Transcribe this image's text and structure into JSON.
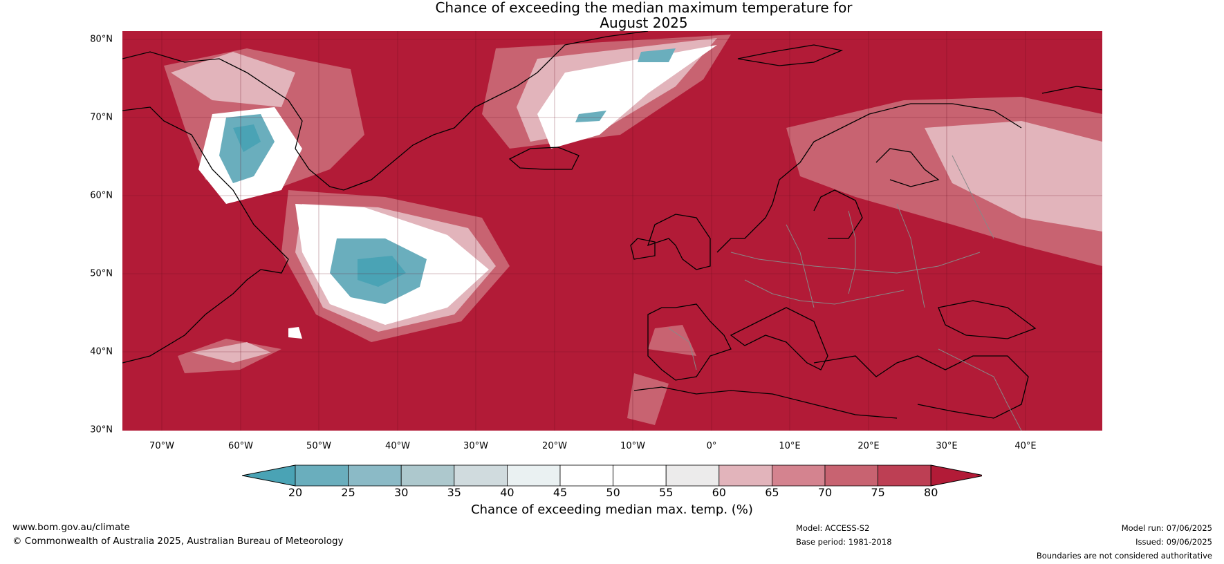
{
  "title": {
    "line1": "Chance of exceeding the median maximum temperature for",
    "line2": "August 2025"
  },
  "map": {
    "region": "North Atlantic and Europe",
    "background_color": "#b21b37",
    "lat_labels": [
      "80°N",
      "70°N",
      "60°N",
      "50°N",
      "40°N",
      "30°N"
    ],
    "lon_labels": [
      "70°W",
      "60°W",
      "50°W",
      "40°W",
      "30°W",
      "20°W",
      "10°W",
      "0°",
      "10°E",
      "20°E",
      "30°E",
      "40°E"
    ]
  },
  "colorbar": {
    "ticks": [
      "20",
      "25",
      "30",
      "35",
      "40",
      "45",
      "50",
      "55",
      "60",
      "65",
      "70",
      "75",
      "80"
    ],
    "colors": [
      "#4aa3b5",
      "#6aaebd",
      "#8bbac6",
      "#adc8cd",
      "#d0dbde",
      "#eaf1f2",
      "#ffffff",
      "#ffffff",
      "#ecebeb",
      "#e2b4bb",
      "#d4838f",
      "#c86371",
      "#bd3f54",
      "#b21b37"
    ],
    "label": "Chance of exceeding median max. temp. (%)"
  },
  "footer": {
    "website": "www.bom.gov.au/climate",
    "copyright": "© Commonwealth of Australia 2025, Australian Bureau of Meteorology",
    "model": "Model: ACCESS-S2",
    "base_period": "Base period: 1981-2018",
    "model_run": "Model run: 07/06/2025",
    "issued": "Issued: 09/06/2025",
    "disclaimer": "Boundaries are not considered authoritative"
  }
}
